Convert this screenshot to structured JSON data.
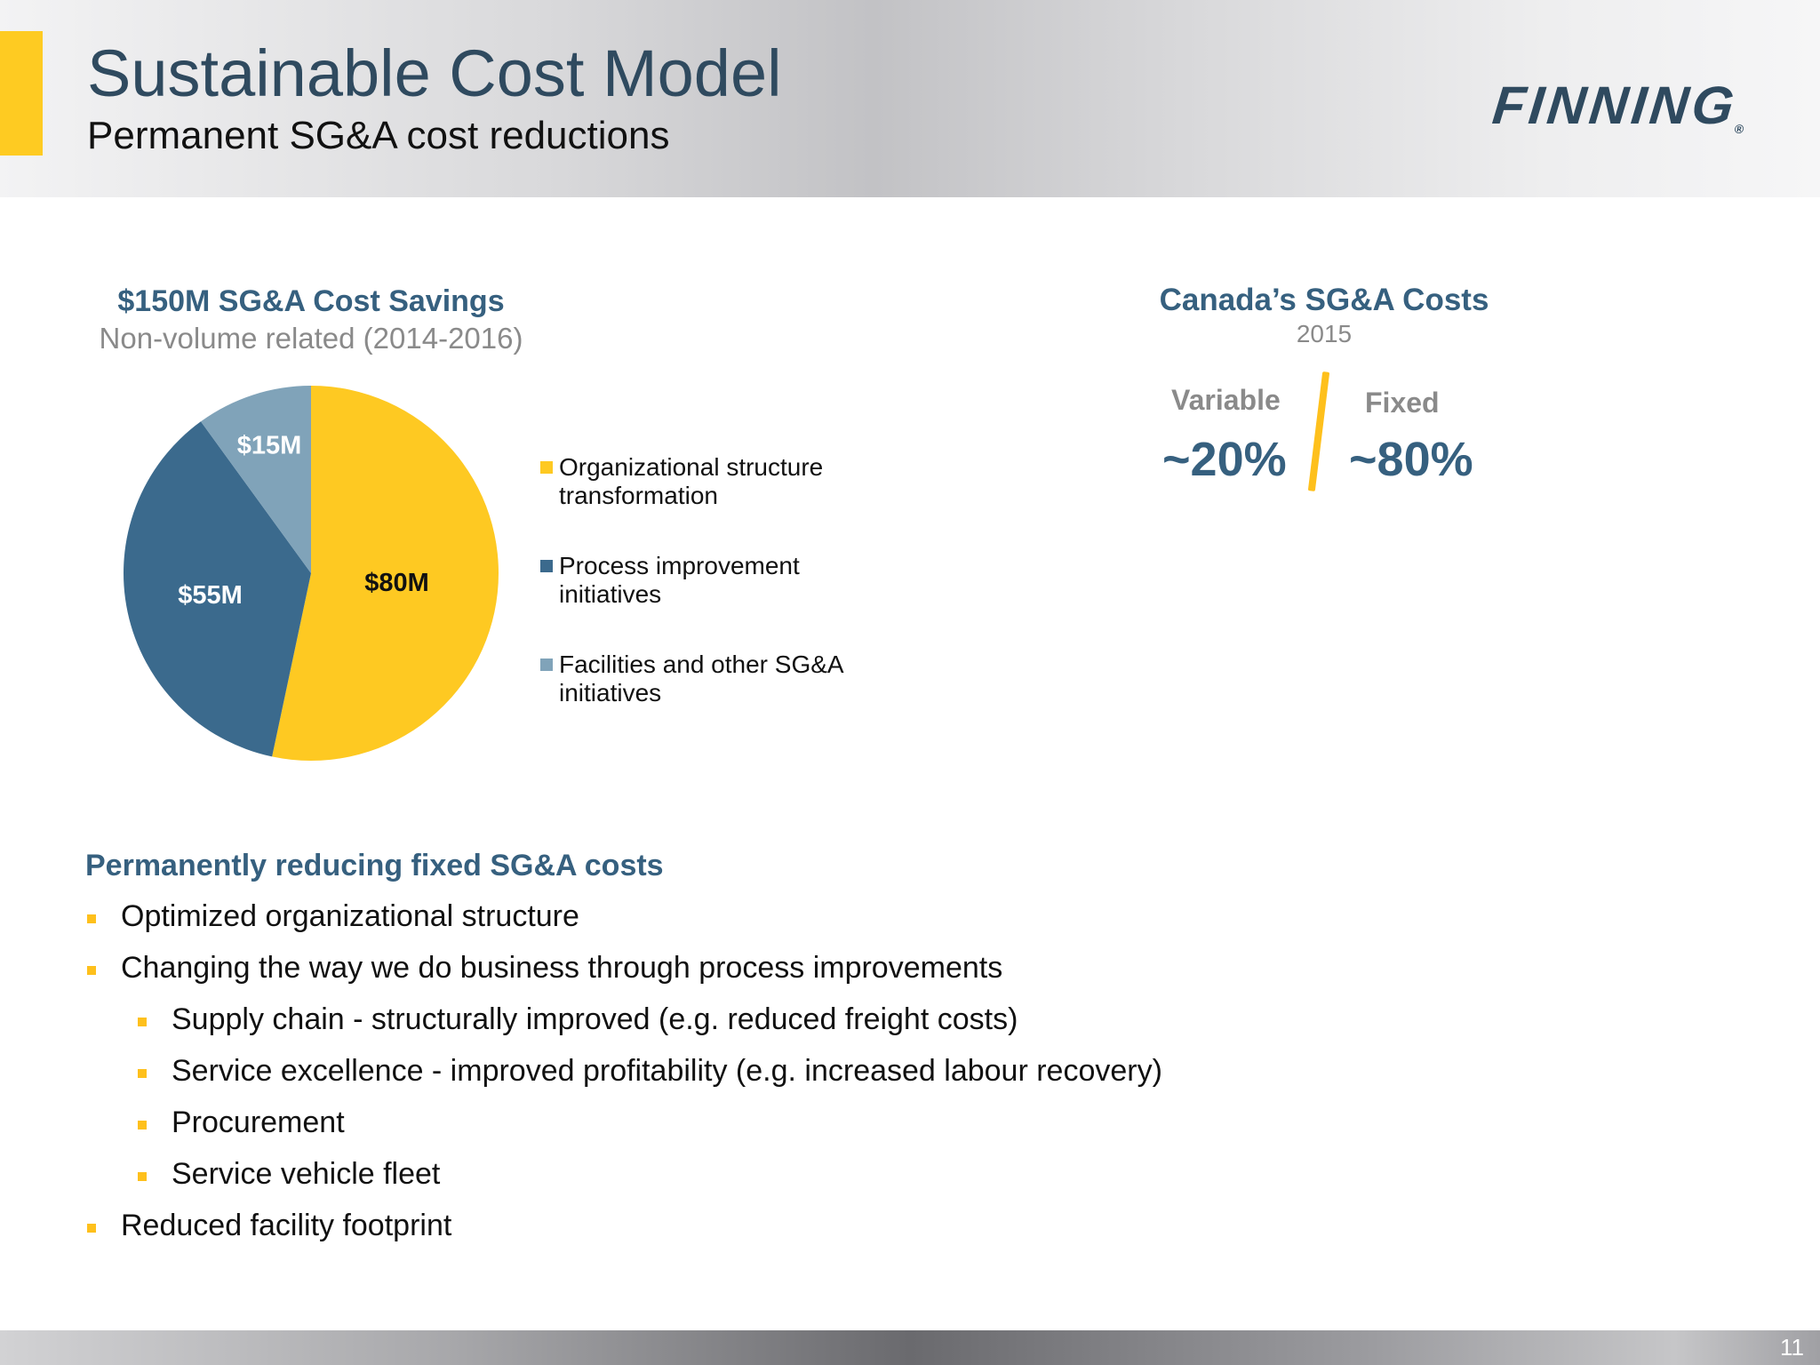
{
  "header": {
    "title": "Sustainable Cost Model",
    "subtitle": "Permanent SG&A cost reductions",
    "logo_text": "FINNING",
    "logo_mark": "®",
    "accent_color": "#fecb22"
  },
  "chart_data": {
    "type": "pie",
    "title": "$150M SG&A Cost Savings",
    "subtitle": "Non-volume related (2014-2016)",
    "slices": [
      {
        "label": "Organizational structure transformation",
        "value": 80,
        "value_label": "$80M",
        "color": "#fec922"
      },
      {
        "label": "Process improvement initiatives",
        "value": 55,
        "value_label": "$55M",
        "color": "#3b6a8d"
      },
      {
        "label": "Facilities and other SG&A initiatives",
        "value": 15,
        "value_label": "$15M",
        "color": "#80a3b9"
      }
    ],
    "legend_position": "right"
  },
  "cost_split": {
    "title": "Canada’s SG&A Costs",
    "year": "2015",
    "variable_label": "Variable",
    "variable_value": "~20%",
    "fixed_label": "Fixed",
    "fixed_value": "~80%"
  },
  "points": {
    "heading": "Permanently reducing fixed SG&A costs",
    "items": [
      {
        "text": "Optimized organizational structure",
        "level": 1
      },
      {
        "text": "Changing the way we do business through process improvements",
        "level": 1
      },
      {
        "text": "Supply chain - structurally improved (e.g. reduced freight costs)",
        "level": 2
      },
      {
        "text": "Service excellence - improved profitability (e.g. increased labour recovery)",
        "level": 2
      },
      {
        "text": "Procurement",
        "level": 2
      },
      {
        "text": "Service vehicle fleet",
        "level": 2
      },
      {
        "text": "Reduced facility footprint",
        "level": 1
      }
    ]
  },
  "footer": {
    "page_number": "11"
  }
}
